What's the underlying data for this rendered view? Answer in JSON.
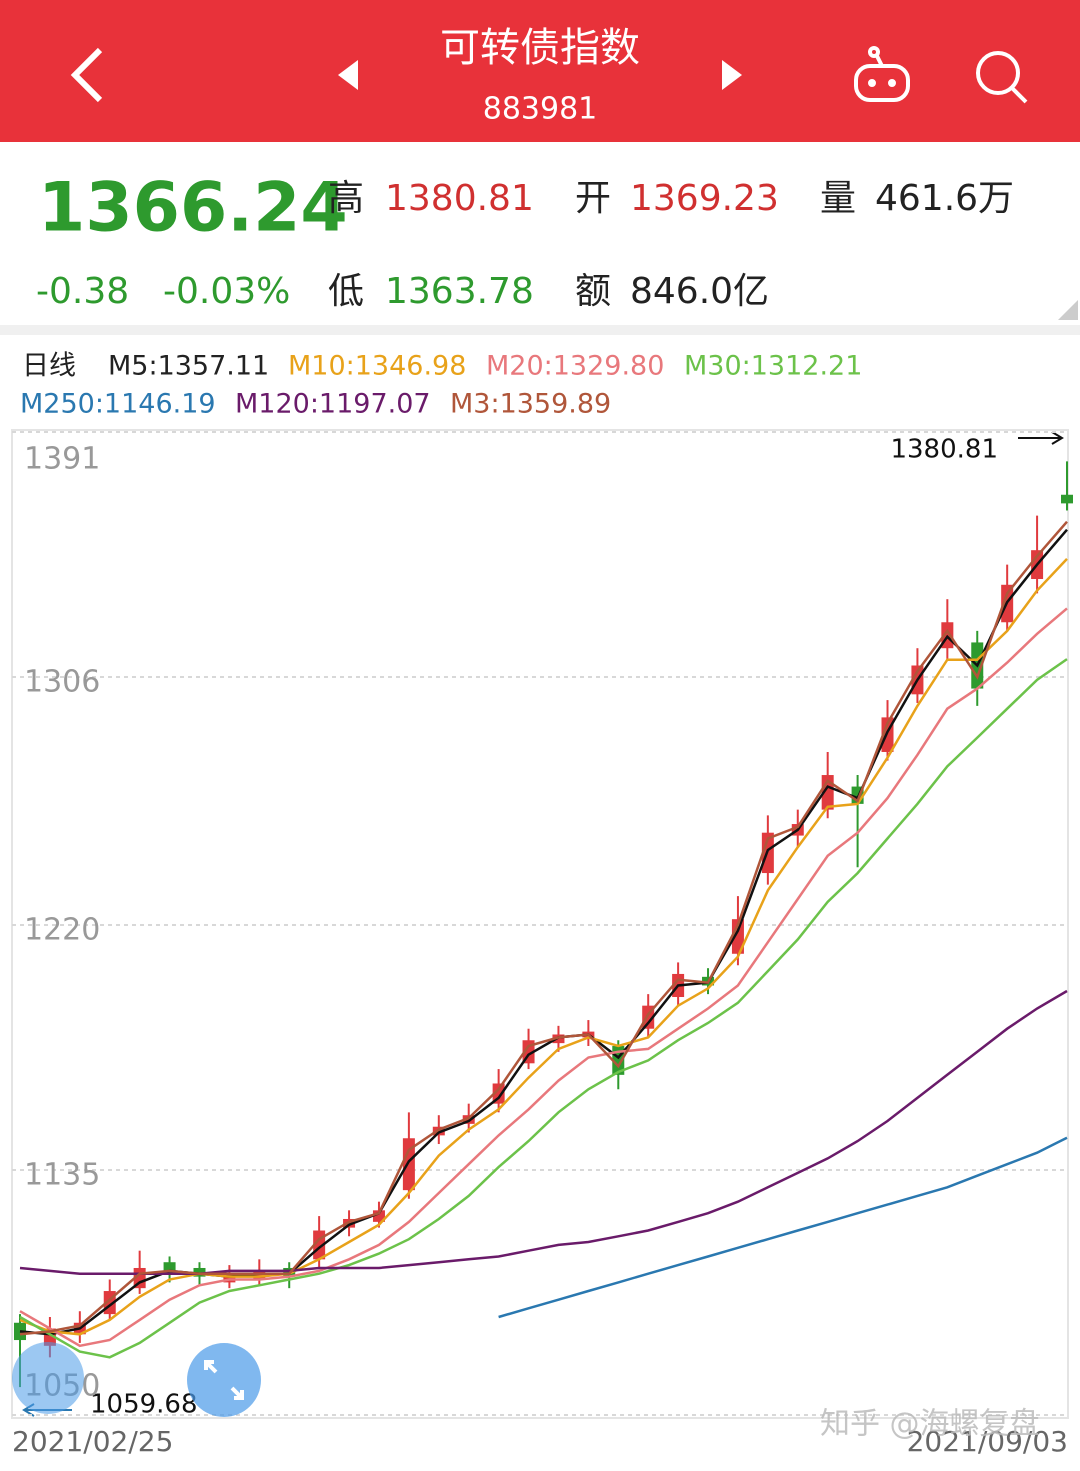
{
  "header": {
    "title": "可转债指数",
    "code": "883981"
  },
  "quote": {
    "last": 1366.24,
    "change": -0.38,
    "change_pct": "-0.03%",
    "high": {
      "label": "高",
      "value": 1380.81
    },
    "open": {
      "label": "开",
      "value": 1369.23
    },
    "volume": {
      "label": "量",
      "value": "461.6万"
    },
    "low": {
      "label": "低",
      "value": 1363.78
    },
    "amount": {
      "label": "额",
      "value": "846.0亿"
    }
  },
  "chart_data": {
    "type": "candlestick",
    "period": "日线",
    "categories": [
      "2021/02/25",
      null,
      null,
      null,
      null,
      null,
      null,
      null,
      null,
      null,
      null,
      null,
      null,
      null,
      null,
      null,
      null,
      null,
      null,
      null,
      null,
      null,
      null,
      null,
      null,
      null,
      null,
      null,
      null,
      null,
      null,
      null,
      null,
      null,
      null,
      "2021/09/03"
    ],
    "open": [
      1082,
      1074,
      1078,
      1085,
      1094,
      1103,
      1101,
      1096,
      1097,
      1101,
      1104,
      1115,
      1117,
      1128,
      1147,
      1151,
      1158,
      1172,
      1179,
      1181,
      1178,
      1184,
      1195,
      1202,
      1210,
      1238,
      1251,
      1260,
      1268,
      1280,
      1300,
      1316,
      1318,
      1325,
      1340,
      1369.23
    ],
    "high": [
      1085,
      1084,
      1086,
      1097,
      1107,
      1105,
      1103,
      1102,
      1104,
      1103,
      1119,
      1121,
      1124,
      1155,
      1154,
      1158,
      1170,
      1184,
      1185,
      1187,
      1180,
      1196,
      1207,
      1205,
      1230,
      1258,
      1260,
      1280,
      1272,
      1298,
      1316,
      1333,
      1322,
      1345,
      1362,
      1380.81
    ],
    "low": [
      1059.68,
      1070,
      1075,
      1083,
      1092,
      1096,
      1095,
      1094,
      1095,
      1094,
      1101,
      1112,
      1115,
      1125,
      1144,
      1148,
      1155,
      1170,
      1176,
      1178,
      1163,
      1181,
      1192,
      1196,
      1206,
      1234,
      1247,
      1257,
      1240,
      1277,
      1297,
      1312,
      1296,
      1322,
      1335,
      1363.78
    ],
    "close": [
      1076,
      1080,
      1082,
      1093,
      1101,
      1099,
      1098,
      1099,
      1100,
      1098,
      1114,
      1118,
      1121,
      1146,
      1150,
      1154,
      1165,
      1180,
      1182,
      1183,
      1168,
      1192,
      1203,
      1199,
      1222,
      1252,
      1255,
      1272,
      1262,
      1292,
      1310,
      1325,
      1302,
      1338,
      1350,
      1366.24
    ],
    "up_color": "#e03a3e",
    "down_color": "#2e9a2e",
    "series": [
      {
        "name": "M5:1357.11",
        "color": "#111111",
        "values": [
          1079,
          1078,
          1080,
          1088,
          1096,
          1100,
          1099,
          1098,
          1099,
          1099,
          1108,
          1116,
          1120,
          1138,
          1148,
          1152,
          1160,
          1175,
          1181,
          1182,
          1174,
          1186,
          1199,
          1200,
          1218,
          1246,
          1253,
          1268,
          1264,
          1287,
          1305,
          1320,
          1310,
          1332,
          1345,
          1357.11
        ]
      },
      {
        "name": "M10:1346.98",
        "color": "#e8a21a",
        "values": [
          1083,
          1079,
          1078,
          1083,
          1091,
          1097,
          1099,
          1098,
          1098,
          1099,
          1104,
          1110,
          1116,
          1127,
          1140,
          1149,
          1156,
          1167,
          1177,
          1181,
          1178,
          1181,
          1192,
          1198,
          1209,
          1232,
          1247,
          1261,
          1262,
          1278,
          1296,
          1312,
          1312,
          1322,
          1336,
          1346.98
        ]
      },
      {
        "name": "M20:1329.80",
        "color": "#e8787c",
        "values": [
          1086,
          1080,
          1074,
          1076,
          1083,
          1090,
          1095,
          1097,
          1097,
          1098,
          1100,
          1104,
          1109,
          1117,
          1127,
          1137,
          1147,
          1156,
          1166,
          1174,
          1176,
          1177,
          1184,
          1191,
          1199,
          1214,
          1229,
          1244,
          1252,
          1264,
          1279,
          1295,
          1302,
          1311,
          1321,
          1329.8
        ]
      },
      {
        "name": "M30:1312.21",
        "color": "#6cc24a",
        "values": [
          1084,
          1078,
          1072,
          1070,
          1075,
          1082,
          1089,
          1093,
          1095,
          1097,
          1099,
          1102,
          1106,
          1111,
          1118,
          1126,
          1136,
          1145,
          1155,
          1163,
          1169,
          1173,
          1180,
          1186,
          1193,
          1204,
          1215,
          1228,
          1238,
          1250,
          1262,
          1275,
          1285,
          1295,
          1305,
          1312.21
        ]
      },
      {
        "name": "M250:1146.19",
        "color": "#2a78b0",
        "values": [
          null,
          null,
          null,
          null,
          null,
          null,
          null,
          null,
          null,
          null,
          null,
          null,
          null,
          null,
          null,
          null,
          1084,
          1087,
          1090,
          1093,
          1096,
          1099,
          1102,
          1105,
          1108,
          1111,
          1114,
          1117,
          1120,
          1123,
          1126,
          1129,
          1133,
          1137,
          1141,
          1146.19
        ]
      },
      {
        "name": "M120:1197.07",
        "color": "#6a1b6a",
        "values": [
          1101,
          1100,
          1099,
          1099,
          1099,
          1099,
          1099,
          1100,
          1100,
          1100,
          1101,
          1101,
          1101,
          1102,
          1103,
          1104,
          1105,
          1107,
          1109,
          1110,
          1112,
          1114,
          1117,
          1120,
          1124,
          1129,
          1134,
          1139,
          1145,
          1152,
          1160,
          1168,
          1176,
          1184,
          1191,
          1197.07
        ]
      },
      {
        "name": "M3:1359.89",
        "color": "#b0563a",
        "values": [
          1078,
          1079,
          1081,
          1090,
          1099,
          1100,
          1099,
          1099,
          1099,
          1099,
          1111,
          1117,
          1120,
          1142,
          1149,
          1153,
          1163,
          1178,
          1181,
          1182,
          1171,
          1189,
          1201,
          1200,
          1220,
          1250,
          1254,
          1270,
          1263,
          1290,
          1308,
          1322,
          1306,
          1335,
          1348,
          1359.89
        ]
      }
    ],
    "ylim": [
      1050,
      1391
    ],
    "yticks": [
      1050,
      1135,
      1220,
      1306,
      1391
    ],
    "grid": true,
    "high_marker": 1380.81,
    "low_marker": 1059.68
  },
  "watermark": "知乎 @海螺复盘"
}
